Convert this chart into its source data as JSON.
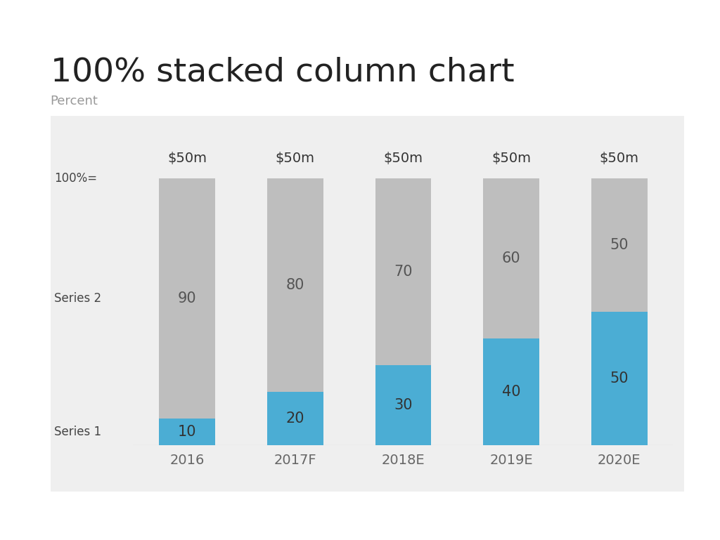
{
  "title": "100% stacked column chart",
  "subtitle": "Percent",
  "categories": [
    "2016",
    "2017F",
    "2018E",
    "2019E",
    "2020E"
  ],
  "series1_values": [
    10,
    20,
    30,
    40,
    50
  ],
  "series2_values": [
    90,
    80,
    70,
    60,
    50
  ],
  "series1_label": "Series 1",
  "series2_label": "Series 2",
  "hundred_label": "100%=",
  "top_labels": [
    "$50m",
    "$50m",
    "$50m",
    "$50m",
    "$50m"
  ],
  "series1_color": "#4BADD4",
  "series2_color": "#BEBEBE",
  "bg_color": "#EFEFEF",
  "outer_bg": "#FFFFFF",
  "title_fontsize": 34,
  "subtitle_fontsize": 13,
  "bar_width": 0.52,
  "ylim": [
    0,
    100
  ]
}
